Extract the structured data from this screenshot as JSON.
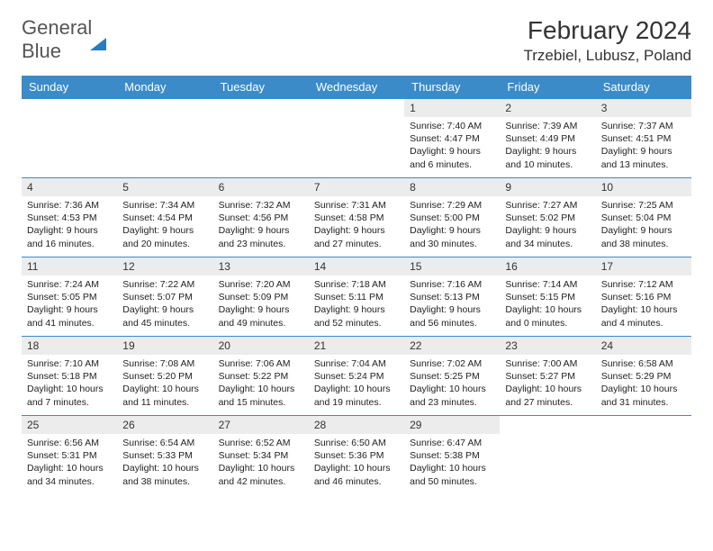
{
  "logo": {
    "text_gray": "General",
    "text_blue": "Blue"
  },
  "title": "February 2024",
  "location": "Trzebiel, Lubusz, Poland",
  "colors": {
    "header_bg": "#3b8bc9",
    "header_text": "#ffffff",
    "daynum_bg": "#ececec",
    "row_border": "#3b8bc9",
    "logo_blue": "#2b7bbf",
    "body_text": "#222222"
  },
  "weekdays": [
    "Sunday",
    "Monday",
    "Tuesday",
    "Wednesday",
    "Thursday",
    "Friday",
    "Saturday"
  ],
  "weeks": [
    [
      null,
      null,
      null,
      null,
      {
        "n": "1",
        "sr": "7:40 AM",
        "ss": "4:47 PM",
        "dl": "9 hours and 6 minutes."
      },
      {
        "n": "2",
        "sr": "7:39 AM",
        "ss": "4:49 PM",
        "dl": "9 hours and 10 minutes."
      },
      {
        "n": "3",
        "sr": "7:37 AM",
        "ss": "4:51 PM",
        "dl": "9 hours and 13 minutes."
      }
    ],
    [
      {
        "n": "4",
        "sr": "7:36 AM",
        "ss": "4:53 PM",
        "dl": "9 hours and 16 minutes."
      },
      {
        "n": "5",
        "sr": "7:34 AM",
        "ss": "4:54 PM",
        "dl": "9 hours and 20 minutes."
      },
      {
        "n": "6",
        "sr": "7:32 AM",
        "ss": "4:56 PM",
        "dl": "9 hours and 23 minutes."
      },
      {
        "n": "7",
        "sr": "7:31 AM",
        "ss": "4:58 PM",
        "dl": "9 hours and 27 minutes."
      },
      {
        "n": "8",
        "sr": "7:29 AM",
        "ss": "5:00 PM",
        "dl": "9 hours and 30 minutes."
      },
      {
        "n": "9",
        "sr": "7:27 AM",
        "ss": "5:02 PM",
        "dl": "9 hours and 34 minutes."
      },
      {
        "n": "10",
        "sr": "7:25 AM",
        "ss": "5:04 PM",
        "dl": "9 hours and 38 minutes."
      }
    ],
    [
      {
        "n": "11",
        "sr": "7:24 AM",
        "ss": "5:05 PM",
        "dl": "9 hours and 41 minutes."
      },
      {
        "n": "12",
        "sr": "7:22 AM",
        "ss": "5:07 PM",
        "dl": "9 hours and 45 minutes."
      },
      {
        "n": "13",
        "sr": "7:20 AM",
        "ss": "5:09 PM",
        "dl": "9 hours and 49 minutes."
      },
      {
        "n": "14",
        "sr": "7:18 AM",
        "ss": "5:11 PM",
        "dl": "9 hours and 52 minutes."
      },
      {
        "n": "15",
        "sr": "7:16 AM",
        "ss": "5:13 PM",
        "dl": "9 hours and 56 minutes."
      },
      {
        "n": "16",
        "sr": "7:14 AM",
        "ss": "5:15 PM",
        "dl": "10 hours and 0 minutes."
      },
      {
        "n": "17",
        "sr": "7:12 AM",
        "ss": "5:16 PM",
        "dl": "10 hours and 4 minutes."
      }
    ],
    [
      {
        "n": "18",
        "sr": "7:10 AM",
        "ss": "5:18 PM",
        "dl": "10 hours and 7 minutes."
      },
      {
        "n": "19",
        "sr": "7:08 AM",
        "ss": "5:20 PM",
        "dl": "10 hours and 11 minutes."
      },
      {
        "n": "20",
        "sr": "7:06 AM",
        "ss": "5:22 PM",
        "dl": "10 hours and 15 minutes."
      },
      {
        "n": "21",
        "sr": "7:04 AM",
        "ss": "5:24 PM",
        "dl": "10 hours and 19 minutes."
      },
      {
        "n": "22",
        "sr": "7:02 AM",
        "ss": "5:25 PM",
        "dl": "10 hours and 23 minutes."
      },
      {
        "n": "23",
        "sr": "7:00 AM",
        "ss": "5:27 PM",
        "dl": "10 hours and 27 minutes."
      },
      {
        "n": "24",
        "sr": "6:58 AM",
        "ss": "5:29 PM",
        "dl": "10 hours and 31 minutes."
      }
    ],
    [
      {
        "n": "25",
        "sr": "6:56 AM",
        "ss": "5:31 PM",
        "dl": "10 hours and 34 minutes."
      },
      {
        "n": "26",
        "sr": "6:54 AM",
        "ss": "5:33 PM",
        "dl": "10 hours and 38 minutes."
      },
      {
        "n": "27",
        "sr": "6:52 AM",
        "ss": "5:34 PM",
        "dl": "10 hours and 42 minutes."
      },
      {
        "n": "28",
        "sr": "6:50 AM",
        "ss": "5:36 PM",
        "dl": "10 hours and 46 minutes."
      },
      {
        "n": "29",
        "sr": "6:47 AM",
        "ss": "5:38 PM",
        "dl": "10 hours and 50 minutes."
      },
      null,
      null
    ]
  ],
  "labels": {
    "sunrise": "Sunrise:",
    "sunset": "Sunset:",
    "daylight": "Daylight:"
  }
}
